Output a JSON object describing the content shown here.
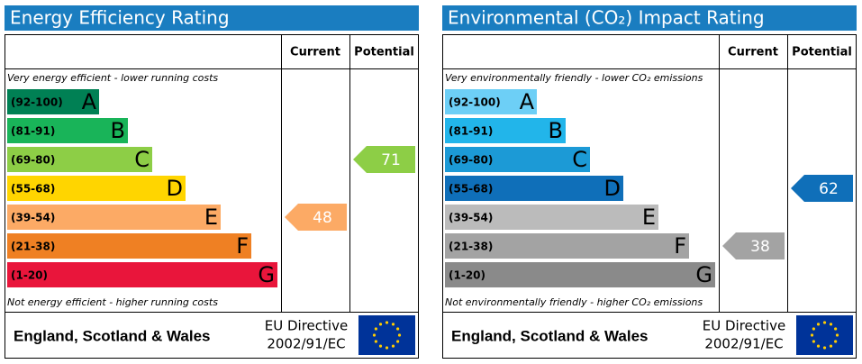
{
  "chart_data": [
    {
      "type": "epc",
      "title": "Energy Efficiency Rating",
      "columns": [
        "Current",
        "Potential"
      ],
      "top_note": "Very energy efficient - lower running costs",
      "bottom_note": "Not energy efficient - higher running costs",
      "bands": [
        {
          "range": "(92-100)",
          "letter": "A",
          "color": "#008054"
        },
        {
          "range": "(81-91)",
          "letter": "B",
          "color": "#19b459"
        },
        {
          "range": "(69-80)",
          "letter": "C",
          "color": "#8dce46"
        },
        {
          "range": "(55-68)",
          "letter": "D",
          "color": "#ffd500"
        },
        {
          "range": "(39-54)",
          "letter": "E",
          "color": "#fcaa65"
        },
        {
          "range": "(21-38)",
          "letter": "F",
          "color": "#ef8023"
        },
        {
          "range": "(1-20)",
          "letter": "G",
          "color": "#e9153b"
        }
      ],
      "current": 48,
      "potential": 71,
      "region": "England, Scotland & Wales",
      "directive": [
        "EU Directive",
        "2002/91/EC"
      ]
    },
    {
      "type": "epc",
      "title": "Environmental (CO₂) Impact Rating",
      "columns": [
        "Current",
        "Potential"
      ],
      "top_note": "Very environmentally friendly - lower CO₂ emissions",
      "bottom_note": "Not environmentally friendly - higher CO₂ emissions",
      "bands": [
        {
          "range": "(92-100)",
          "letter": "A",
          "color": "#6dcff6"
        },
        {
          "range": "(81-91)",
          "letter": "B",
          "color": "#22b5ea"
        },
        {
          "range": "(69-80)",
          "letter": "C",
          "color": "#1c9ad6"
        },
        {
          "range": "(55-68)",
          "letter": "D",
          "color": "#0f6fb9"
        },
        {
          "range": "(39-54)",
          "letter": "E",
          "color": "#bbbbbb"
        },
        {
          "range": "(21-38)",
          "letter": "F",
          "color": "#a3a3a3"
        },
        {
          "range": "(1-20)",
          "letter": "G",
          "color": "#8a8a8a"
        }
      ],
      "current": 38,
      "potential": 62,
      "region": "England, Scotland & Wales",
      "directive": [
        "EU Directive",
        "2002/91/EC"
      ]
    }
  ]
}
